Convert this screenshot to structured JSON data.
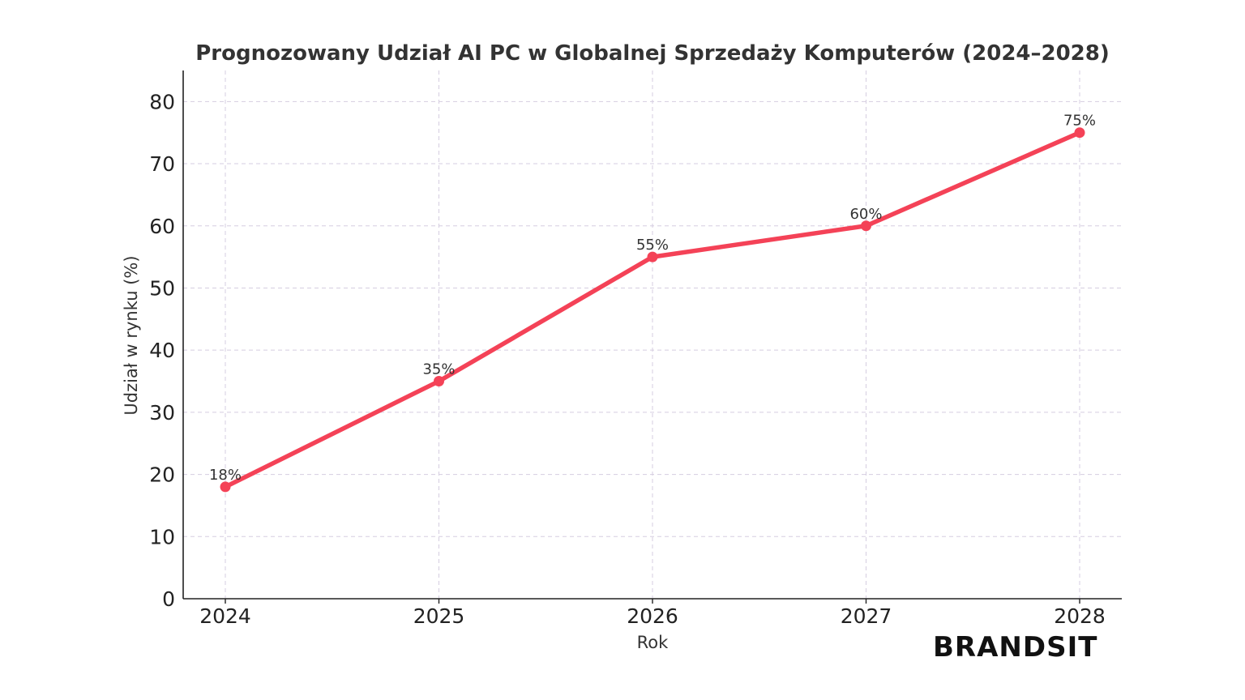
{
  "chart_data": {
    "type": "line",
    "title": "Prognozowany Udział AI PC w Globalnej Sprzedaży Komputerów (2024–2028)",
    "xlabel": "Rok",
    "ylabel": "Udział w rynku (%)",
    "categories": [
      "2024",
      "2025",
      "2026",
      "2027",
      "2028"
    ],
    "series": [
      {
        "values": [
          18,
          35,
          55,
          60,
          75
        ],
        "data_labels": [
          "18%",
          "35%",
          "55%",
          "60%",
          "75%"
        ],
        "color": "#f44257"
      }
    ],
    "ylim": [
      0,
      85
    ],
    "yticks": [
      0,
      10,
      20,
      30,
      40,
      50,
      60,
      70,
      80
    ],
    "grid": true,
    "grid_color": "#d5cde0"
  },
  "watermark": {
    "text": "BRANDSIT"
  }
}
